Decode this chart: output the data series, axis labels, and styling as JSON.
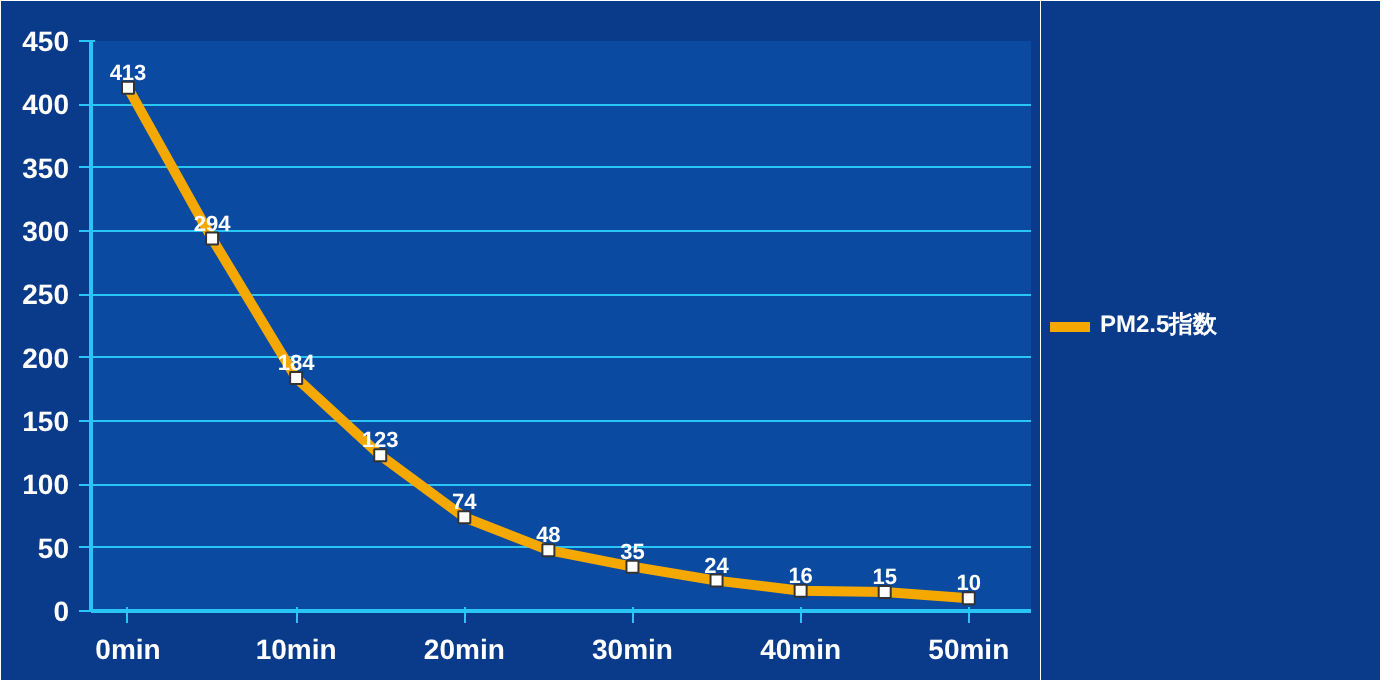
{
  "chart_data": {
    "type": "line",
    "x": [
      0,
      5,
      10,
      15,
      20,
      25,
      30,
      35,
      40,
      45,
      50
    ],
    "series": [
      {
        "name": "PM2.5指数",
        "color": "#f5a800",
        "values": [
          413,
          294,
          184,
          123,
          74,
          48,
          35,
          24,
          16,
          15,
          10
        ]
      }
    ],
    "xlim": [
      -2.2,
      53.7
    ],
    "xticks": [
      {
        "value": 0,
        "label": "0min"
      },
      {
        "value": 10,
        "label": "10min"
      },
      {
        "value": 20,
        "label": "20min"
      },
      {
        "value": 30,
        "label": "30min"
      },
      {
        "value": 40,
        "label": "40min"
      },
      {
        "value": 50,
        "label": "50min"
      }
    ],
    "ylim": [
      0,
      450
    ],
    "yticks": [
      0,
      50,
      100,
      150,
      200,
      250,
      300,
      350,
      400,
      450
    ],
    "grid": "y",
    "legend": "right",
    "marker": "square",
    "line_style": "solid",
    "data_labels": true
  }
}
